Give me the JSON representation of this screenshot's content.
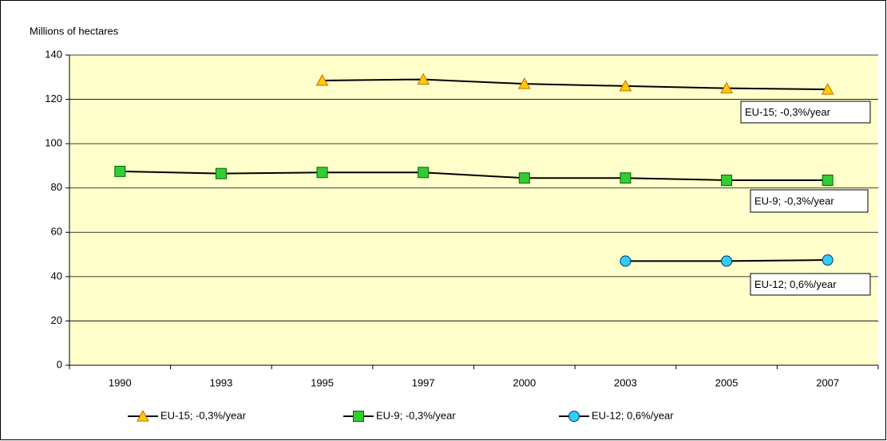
{
  "chart_data": {
    "type": "line",
    "y_axis_label": "Millions of hectares",
    "categories": [
      "1990",
      "1993",
      "1995",
      "1997",
      "2000",
      "2003",
      "2005",
      "2007"
    ],
    "ylim": [
      0,
      140
    ],
    "yticks": [
      0,
      20,
      40,
      60,
      80,
      100,
      120,
      140
    ],
    "grid": true,
    "plot_background": "#ffffcc",
    "legend": "bottom",
    "series": [
      {
        "name": "EU-15; -0,3%/year",
        "marker": "triangle",
        "color": "#ffcc00",
        "line_color": "#000000",
        "values": [
          null,
          null,
          128.5,
          129,
          127,
          126,
          125,
          124.5
        ]
      },
      {
        "name": "EU-9; -0,3%/year",
        "marker": "square",
        "color": "#33cc33",
        "line_color": "#000000",
        "values": [
          87.5,
          86.5,
          87,
          87,
          84.5,
          84.5,
          83.5,
          83.5
        ]
      },
      {
        "name": "EU-12; 0,6%/year",
        "marker": "circle",
        "color": "#33ccff",
        "line_color": "#000000",
        "values": [
          null,
          null,
          null,
          null,
          null,
          47,
          47,
          47.5
        ]
      }
    ],
    "annotations": [
      "EU-15; -0,3%/year",
      "EU-9; -0,3%/year",
      "EU-12; 0,6%/year"
    ]
  }
}
